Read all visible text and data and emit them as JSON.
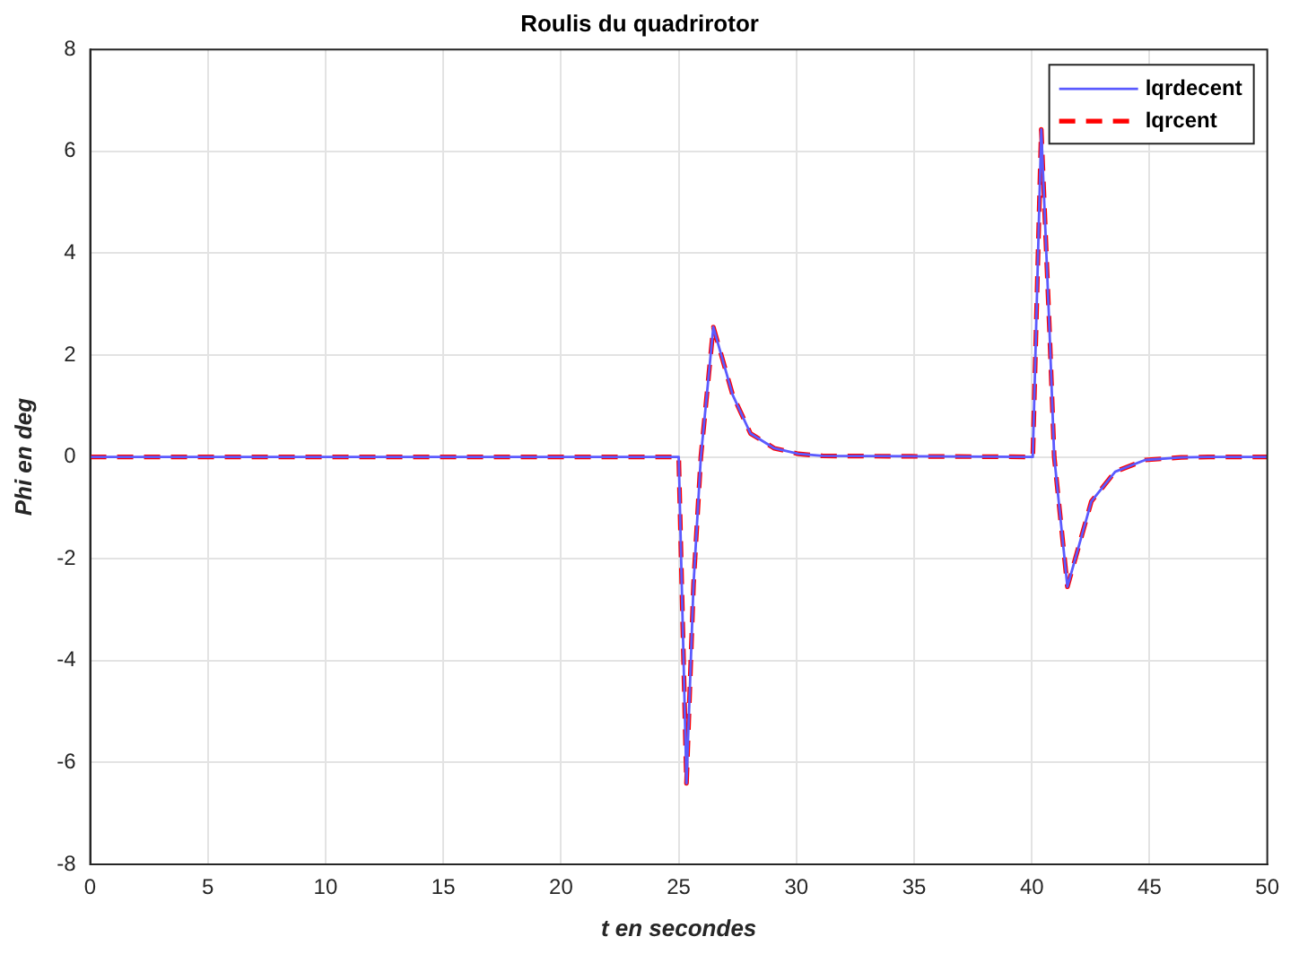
{
  "chart_data": {
    "type": "line",
    "title": "Roulis du quadrirotor",
    "xlabel": "t en secondes",
    "ylabel": "Phi en deg",
    "x": [
      0,
      25.0,
      25.33,
      25.63,
      25.94,
      26.47,
      27.29,
      28.05,
      29.06,
      30.08,
      31.1,
      40.04,
      40.4,
      40.75,
      40.95,
      41.51,
      42.53,
      43.54,
      44.82,
      46.34,
      47.5,
      50
    ],
    "series": [
      {
        "name": "lqrdecent",
        "color": "#5a5aff",
        "line_style": "solid",
        "values": [
          0,
          0,
          -6.41,
          -2.49,
          0,
          2.55,
          1.22,
          0.46,
          0.17,
          0.06,
          0.02,
          0,
          6.43,
          2.49,
          0,
          -2.55,
          -0.87,
          -0.29,
          -0.06,
          -0.01,
          0,
          0
        ]
      },
      {
        "name": "lqrcent",
        "color": "#ff0000",
        "line_style": "dashed",
        "values": [
          0,
          0,
          -6.41,
          -2.49,
          0,
          2.55,
          1.22,
          0.46,
          0.17,
          0.06,
          0.02,
          0,
          6.43,
          2.49,
          0,
          -2.55,
          -0.87,
          -0.29,
          -0.06,
          -0.01,
          0,
          0
        ]
      }
    ],
    "xlim": [
      0,
      50
    ],
    "xticks": [
      0,
      5,
      10,
      15,
      20,
      25,
      30,
      35,
      40,
      45,
      50
    ],
    "ylim": [
      -8,
      8
    ],
    "yticks": [
      -8,
      -6,
      -4,
      -2,
      0,
      2,
      4,
      6,
      8
    ],
    "grid": true,
    "legend": "top right",
    "marker": "none"
  }
}
